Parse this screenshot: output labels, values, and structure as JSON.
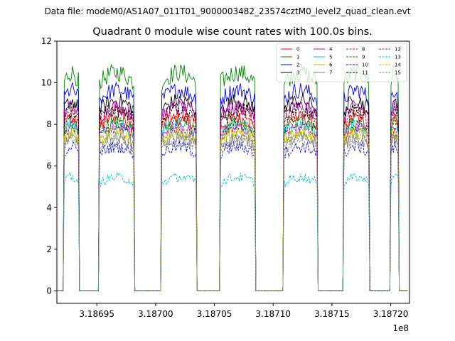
{
  "chart_data": {
    "type": "line",
    "suptitle": "Data file: modeM0/AS1A07_011T01_9000003482_23574cztM0_level2_quad_clean.evt",
    "title": "Quadrant 0 module wise count rates with 100.0s bins.",
    "xlabel": "",
    "ylabel": "",
    "x_offset_label": "1e8",
    "xlim": [
      3.186916,
      3.187216
    ],
    "ylim": [
      -0.6,
      12
    ],
    "xticks": [
      3.18695,
      3.187,
      3.18705,
      3.1871,
      3.18715,
      3.1872
    ],
    "xtick_labels": [
      "3.18695",
      "3.18700",
      "3.18705",
      "3.18710",
      "3.18715",
      "3.18720"
    ],
    "yticks": [
      0,
      2,
      4,
      6,
      8,
      10,
      12
    ],
    "ytick_labels": [
      "0",
      "2",
      "4",
      "6",
      "8",
      "10",
      "12"
    ],
    "legend_location": "top-right",
    "segments": [
      {
        "start": 3.186922,
        "end": 3.186935
      },
      {
        "start": 3.186952,
        "end": 3.186982
      },
      {
        "start": 3.187005,
        "end": 3.187035
      },
      {
        "start": 3.187055,
        "end": 3.187085
      },
      {
        "start": 3.187109,
        "end": 3.187138
      },
      {
        "start": 3.18716,
        "end": 3.187182
      },
      {
        "start": 3.1872,
        "end": 3.187207
      }
    ],
    "series": [
      {
        "name": "0",
        "color": "#ff0000",
        "dash": "solid",
        "level": 7.9
      },
      {
        "name": "1",
        "color": "#008000",
        "dash": "solid",
        "level": 10.0
      },
      {
        "name": "2",
        "color": "#0000ff",
        "dash": "solid",
        "level": 9.2
      },
      {
        "name": "3",
        "color": "#000000",
        "dash": "solid",
        "level": 8.7
      },
      {
        "name": "4",
        "color": "#bf00bf",
        "dash": "solid",
        "level": 8.4
      },
      {
        "name": "5",
        "color": "#00bfbf",
        "dash": "solid",
        "level": 7.6
      },
      {
        "name": "6",
        "color": "#bfbf00",
        "dash": "solid",
        "level": 7.3
      },
      {
        "name": "7",
        "color": "#808080",
        "dash": "solid",
        "level": 7.0
      },
      {
        "name": "8",
        "color": "#ff0000",
        "dash": "dashed",
        "level": 8.1
      },
      {
        "name": "9",
        "color": "#008000",
        "dash": "dashed",
        "level": 7.7
      },
      {
        "name": "10",
        "color": "#0000ff",
        "dash": "dashed",
        "level": 6.6
      },
      {
        "name": "11",
        "color": "#000000",
        "dash": "dashed",
        "level": 8.3
      },
      {
        "name": "12",
        "color": "#bf00bf",
        "dash": "dashed",
        "level": 7.5
      },
      {
        "name": "13",
        "color": "#00bfbf",
        "dash": "dashed",
        "level": 5.2
      },
      {
        "name": "14",
        "color": "#bfbf00",
        "dash": "dashed",
        "level": 7.2
      },
      {
        "name": "15",
        "color": "#808080",
        "dash": "dashed",
        "level": 6.9
      }
    ]
  }
}
